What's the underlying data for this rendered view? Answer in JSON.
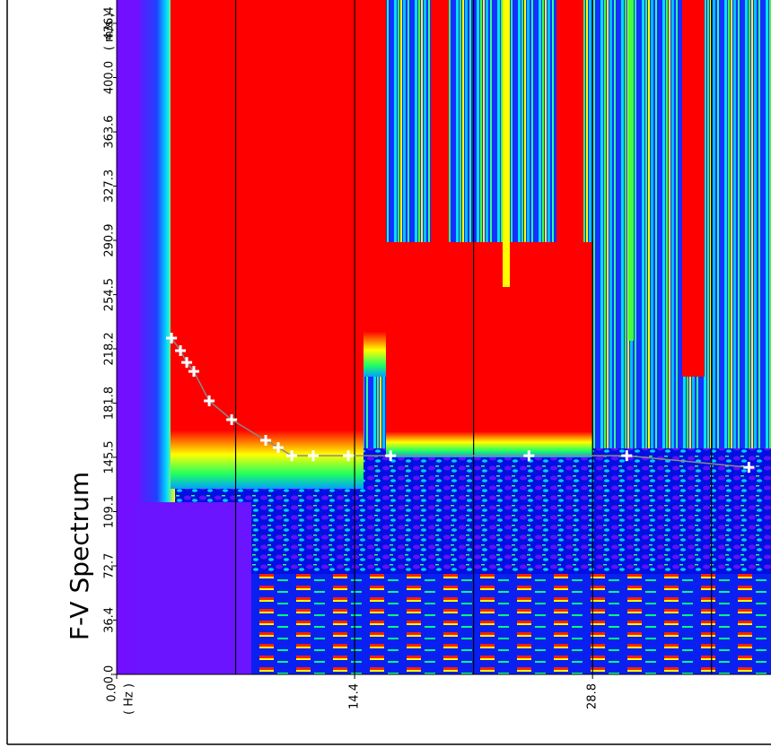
{
  "chart_data": {
    "type": "scatter",
    "title": "F-V Spectrum",
    "x_unit": "( Hz )",
    "y_unit": "( m/s )",
    "xlim": [
      0,
      39.6
    ],
    "ylim": [
      0,
      452
    ],
    "xticks": [
      {
        "value": 0,
        "label": "0.0"
      },
      14.4,
      28.8
    ],
    "xgrid": [
      7.2,
      14.4,
      21.6,
      28.8,
      36.0
    ],
    "yticks": [
      {
        "value": 0,
        "label": "0.0"
      },
      36.4,
      72.7,
      109.1,
      145.5,
      181.8,
      218.2,
      254.5,
      290.9,
      327.3,
      363.6,
      {
        "value": 400,
        "label": "400.0"
      },
      436.4
    ],
    "series": [
      {
        "color": "#ffffff",
        "line_color": "#8a8a8a",
        "x": [
          3.32,
          3.86,
          4.24,
          4.67,
          5.6,
          6.96,
          9.02,
          9.78,
          10.6,
          11.9,
          14.02,
          16.58,
          24.95,
          30.87,
          38.26
        ],
        "y": [
          225.4,
          217.0,
          209.1,
          203.1,
          183.3,
          170.7,
          156.9,
          152.0,
          146.6,
          146.6,
          146.6,
          146.6,
          146.6,
          146.6,
          138.8
        ]
      }
    ]
  }
}
